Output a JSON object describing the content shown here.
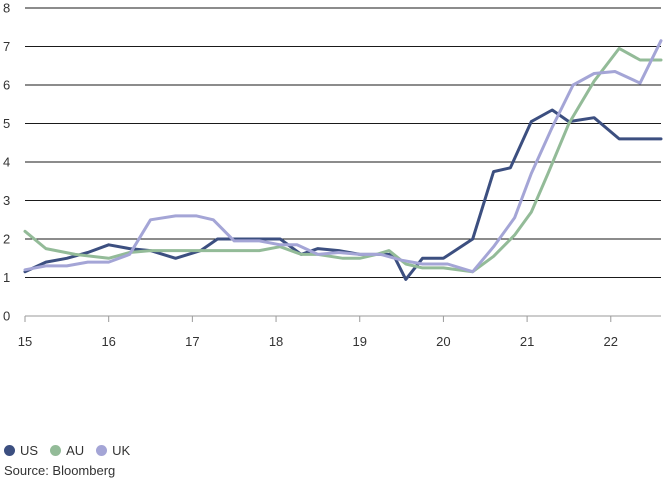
{
  "chart_data": {
    "type": "line",
    "title": "",
    "xlabel": "",
    "ylabel": "",
    "xlim": [
      15,
      22.6
    ],
    "ylim": [
      0,
      8
    ],
    "x_ticks": [
      15,
      16,
      17,
      18,
      19,
      20,
      21,
      22
    ],
    "y_ticks": [
      0,
      1,
      2,
      3,
      4,
      5,
      6,
      7,
      8
    ],
    "grid": "horizontal",
    "legend_placement": "bottom-left",
    "series": [
      {
        "name": "US",
        "color": "#3c4f80",
        "x": [
          15,
          15.25,
          15.5,
          15.75,
          16,
          16.25,
          16.5,
          16.8,
          17.1,
          17.3,
          17.6,
          17.9,
          18.05,
          18.3,
          18.5,
          18.75,
          19,
          19.25,
          19.4,
          19.55,
          19.75,
          20,
          20.35,
          20.6,
          20.8,
          21.05,
          21.3,
          21.5,
          21.8,
          22.1,
          22.4,
          22.6
        ],
        "y": [
          1.15,
          1.4,
          1.5,
          1.65,
          1.85,
          1.75,
          1.7,
          1.5,
          1.7,
          2.0,
          2.0,
          2.0,
          2.0,
          1.6,
          1.75,
          1.7,
          1.6,
          1.6,
          1.6,
          0.95,
          1.5,
          1.5,
          2.0,
          3.75,
          3.85,
          5.05,
          5.35,
          5.05,
          5.15,
          4.6,
          4.6,
          4.6
        ]
      },
      {
        "name": "AU",
        "color": "#93bb98",
        "x": [
          15,
          15.25,
          15.6,
          16,
          16.25,
          16.5,
          16.8,
          17.2,
          17.5,
          17.8,
          18.05,
          18.3,
          18.5,
          18.8,
          19,
          19.2,
          19.35,
          19.55,
          19.75,
          20,
          20.35,
          20.6,
          20.85,
          21.05,
          21.25,
          21.5,
          21.8,
          22.1,
          22.35,
          22.6
        ],
        "y": [
          2.2,
          1.75,
          1.6,
          1.5,
          1.65,
          1.7,
          1.7,
          1.7,
          1.7,
          1.7,
          1.8,
          1.6,
          1.6,
          1.5,
          1.5,
          1.6,
          1.7,
          1.35,
          1.25,
          1.25,
          1.15,
          1.55,
          2.1,
          2.7,
          3.7,
          5.0,
          6.1,
          6.95,
          6.65,
          6.65
        ]
      },
      {
        "name": "UK",
        "color": "#a4a5d6",
        "x": [
          15,
          15.25,
          15.5,
          15.75,
          16,
          16.25,
          16.5,
          16.8,
          17.05,
          17.25,
          17.5,
          17.8,
          18.05,
          18.25,
          18.5,
          18.75,
          19,
          19.25,
          19.5,
          19.75,
          20.05,
          20.35,
          20.6,
          20.85,
          21.05,
          21.3,
          21.55,
          21.8,
          22.05,
          22.35,
          22.6
        ],
        "y": [
          1.2,
          1.3,
          1.3,
          1.4,
          1.4,
          1.6,
          2.5,
          2.6,
          2.6,
          2.5,
          1.95,
          1.95,
          1.85,
          1.85,
          1.6,
          1.65,
          1.6,
          1.6,
          1.45,
          1.35,
          1.35,
          1.15,
          1.8,
          2.55,
          3.7,
          4.9,
          6.0,
          6.3,
          6.35,
          6.05,
          7.15
        ]
      }
    ]
  },
  "source": "Source: Bloomberg"
}
